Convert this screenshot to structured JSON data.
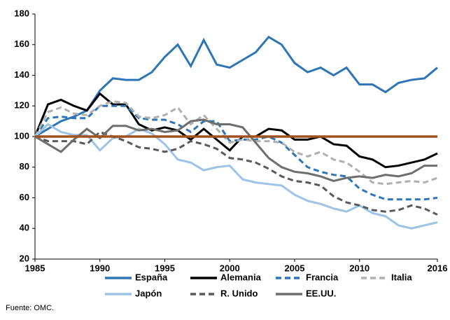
{
  "chart_data": {
    "type": "line",
    "x": [
      1985,
      1986,
      1987,
      1988,
      1989,
      1990,
      1991,
      1992,
      1993,
      1994,
      1995,
      1996,
      1997,
      1998,
      1999,
      2000,
      2001,
      2002,
      2003,
      2004,
      2005,
      2006,
      2007,
      2008,
      2009,
      2010,
      2011,
      2012,
      2013,
      2014,
      2015,
      2016
    ],
    "xlim": [
      1985,
      2016
    ],
    "xticks": [
      1985,
      1990,
      1995,
      2000,
      2005,
      2010,
      2016
    ],
    "ylim": [
      20,
      180
    ],
    "yticks": [
      20,
      40,
      60,
      80,
      100,
      120,
      140,
      160,
      180
    ],
    "reference_line": {
      "value": 100,
      "color": "#a0521e"
    },
    "series": [
      {
        "name": "España",
        "color": "#2e75b6",
        "dash": false,
        "values": [
          100,
          105,
          110,
          113,
          117,
          130,
          138,
          137,
          137,
          142,
          152,
          160,
          146,
          163,
          147,
          145,
          150,
          155,
          165,
          160,
          148,
          142,
          145,
          140,
          145,
          134,
          134,
          129,
          135,
          137,
          138,
          145
        ]
      },
      {
        "name": "Alemania",
        "color": "#000000",
        "dash": false,
        "values": [
          100,
          121,
          124,
          120,
          117,
          128,
          121,
          121,
          108,
          104,
          106,
          104,
          98,
          105,
          98,
          91,
          100,
          100,
          105,
          104,
          98,
          98,
          100,
          95,
          94,
          87,
          85,
          80,
          81,
          83,
          85,
          89
        ]
      },
      {
        "name": "Francia",
        "color": "#2e75b6",
        "dash": true,
        "values": [
          100,
          112,
          113,
          112,
          112,
          120,
          120,
          120,
          112,
          111,
          111,
          108,
          103,
          110,
          110,
          97,
          98,
          98,
          100,
          96,
          88,
          80,
          77,
          75,
          74,
          66,
          62,
          59,
          59,
          59,
          59,
          60
        ]
      },
      {
        "name": "Italia",
        "color": "#b0b0b0",
        "dash": true,
        "values": [
          100,
          116,
          119,
          115,
          114,
          120,
          123,
          122,
          113,
          112,
          114,
          119,
          108,
          114,
          105,
          96,
          98,
          97,
          97,
          96,
          90,
          87,
          90,
          85,
          83,
          77,
          70,
          69,
          70,
          71,
          70,
          73
        ]
      },
      {
        "name": "Japón",
        "color": "#9dc3e6",
        "dash": false,
        "values": [
          100,
          108,
          103,
          101,
          101,
          91,
          99,
          100,
          105,
          102,
          95,
          85,
          83,
          78,
          80,
          81,
          72,
          70,
          69,
          68,
          62,
          58,
          56,
          53,
          51,
          55,
          50,
          48,
          42,
          40,
          42,
          44
        ]
      },
      {
        "name": "R. Unido",
        "color": "#595959",
        "dash": true,
        "values": [
          100,
          97,
          97,
          97,
          95,
          103,
          100,
          97,
          93,
          92,
          90,
          92,
          97,
          95,
          92,
          86,
          85,
          83,
          79,
          74,
          71,
          70,
          68,
          61,
          57,
          55,
          52,
          51,
          52,
          55,
          53,
          49
        ]
      },
      {
        "name": "EE.UU.",
        "color": "#6e6e6e",
        "dash": false,
        "values": [
          100,
          95,
          90,
          98,
          105,
          99,
          107,
          107,
          104,
          105,
          103,
          104,
          110,
          111,
          108,
          108,
          106,
          96,
          86,
          80,
          77,
          76,
          74,
          71,
          73,
          74,
          73,
          75,
          74,
          76,
          81,
          81
        ]
      }
    ],
    "source": "Fuente: OMC."
  }
}
